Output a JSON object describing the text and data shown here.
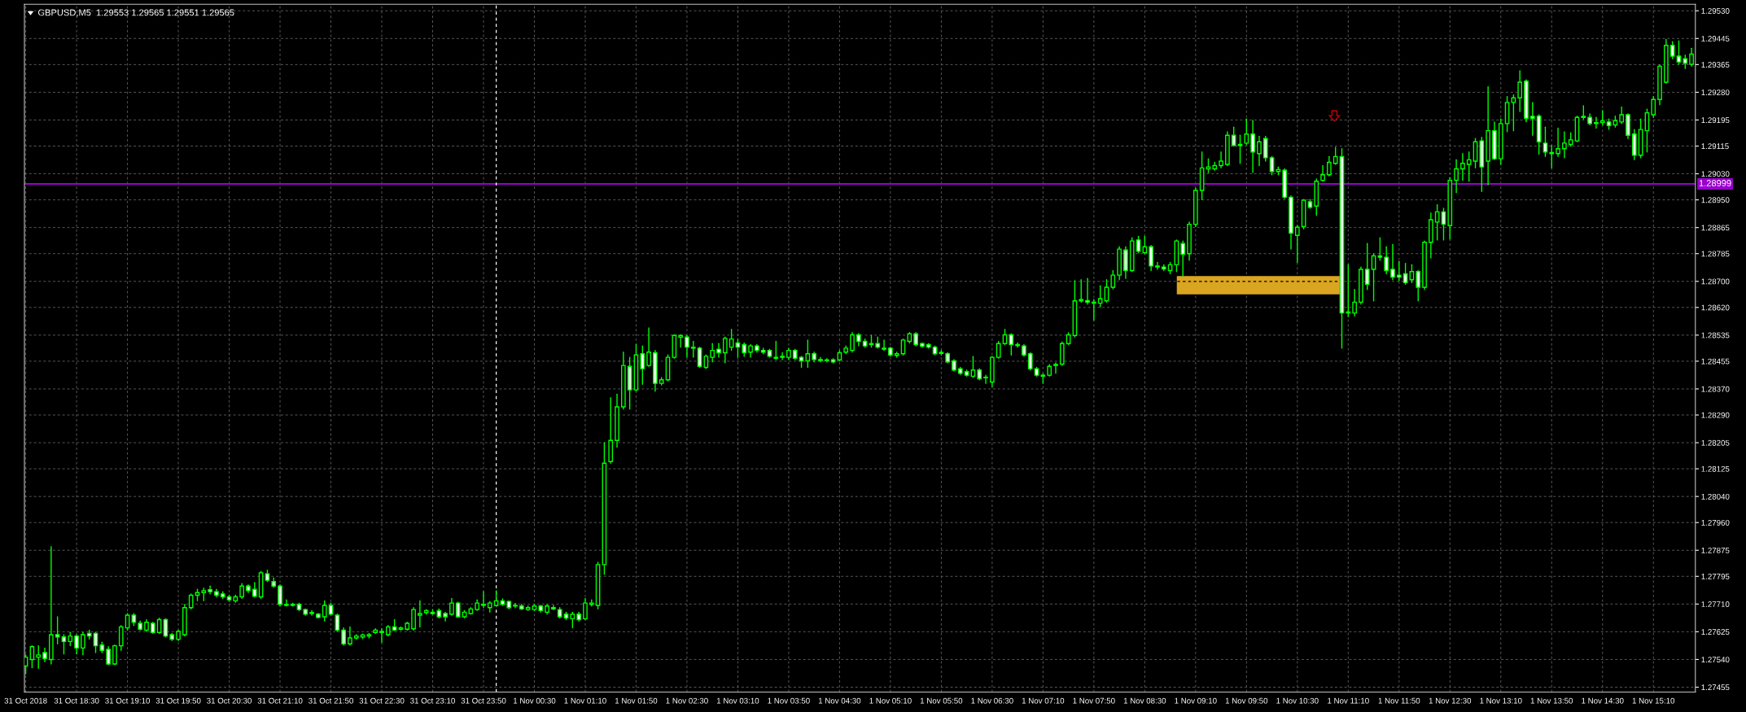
{
  "chart_data": {
    "type": "candlestick",
    "title": "GBPUSD,M5  1.29553 1.29565 1.29551 1.29565",
    "color": "#00ff00",
    "grid": true,
    "x": [
      "2018-10-31T17:50",
      "2018-10-31T17:55",
      "2018-10-31T18:00",
      "2018-10-31T18:05",
      "2018-10-31T18:10",
      "2018-10-31T18:15",
      "2018-10-31T18:20",
      "2018-10-31T18:25",
      "2018-10-31T18:30",
      "2018-10-31T18:35",
      "2018-10-31T18:40",
      "2018-10-31T18:45",
      "2018-10-31T18:50",
      "2018-10-31T18:55",
      "2018-10-31T19:00",
      "2018-10-31T19:05",
      "2018-10-31T19:10",
      "2018-10-31T19:15",
      "2018-10-31T19:20",
      "2018-10-31T19:25",
      "2018-10-31T19:30",
      "2018-10-31T19:35",
      "2018-10-31T19:40",
      "2018-10-31T19:45",
      "2018-10-31T19:50",
      "2018-10-31T19:55",
      "2018-10-31T20:00",
      "2018-10-31T20:05",
      "2018-10-31T20:10",
      "2018-10-31T20:15",
      "2018-10-31T20:20",
      "2018-10-31T20:25",
      "2018-10-31T20:30",
      "2018-10-31T20:35",
      "2018-10-31T20:40",
      "2018-10-31T20:45",
      "2018-10-31T20:50",
      "2018-10-31T20:55",
      "2018-10-31T21:00",
      "2018-10-31T21:05",
      "2018-10-31T21:10",
      "2018-10-31T21:15",
      "2018-10-31T21:20",
      "2018-10-31T21:25",
      "2018-10-31T21:30",
      "2018-10-31T21:35",
      "2018-10-31T21:40",
      "2018-10-31T21:45",
      "2018-10-31T21:50",
      "2018-10-31T21:55",
      "2018-10-31T22:00",
      "2018-10-31T22:05",
      "2018-10-31T22:10",
      "2018-10-31T22:15",
      "2018-10-31T22:20",
      "2018-10-31T22:25",
      "2018-10-31T22:30",
      "2018-10-31T22:35",
      "2018-10-31T22:40",
      "2018-10-31T22:45",
      "2018-10-31T22:50",
      "2018-10-31T22:55",
      "2018-10-31T23:00",
      "2018-10-31T23:05",
      "2018-10-31T23:10",
      "2018-10-31T23:15",
      "2018-10-31T23:20",
      "2018-10-31T23:25",
      "2018-10-31T23:30",
      "2018-10-31T23:35",
      "2018-10-31T23:40",
      "2018-10-31T23:45",
      "2018-10-31T23:50",
      "2018-10-31T23:55",
      "2018-11-01T00:00",
      "2018-11-01T00:05",
      "2018-11-01T00:10",
      "2018-11-01T00:15",
      "2018-11-01T00:20",
      "2018-11-01T00:25",
      "2018-11-01T00:30",
      "2018-11-01T00:35",
      "2018-11-01T00:40",
      "2018-11-01T00:45",
      "2018-11-01T00:50",
      "2018-11-01T00:55",
      "2018-11-01T01:00",
      "2018-11-01T01:05",
      "2018-11-01T01:10",
      "2018-11-01T01:15",
      "2018-11-01T01:20",
      "2018-11-01T01:25",
      "2018-11-01T01:30",
      "2018-11-01T01:35",
      "2018-11-01T01:40",
      "2018-11-01T01:45",
      "2018-11-01T01:50",
      "2018-11-01T01:55",
      "2018-11-01T02:00",
      "2018-11-01T02:05",
      "2018-11-01T02:10",
      "2018-11-01T02:15",
      "2018-11-01T02:20",
      "2018-11-01T02:25",
      "2018-11-01T02:30",
      "2018-11-01T02:35",
      "2018-11-01T02:40",
      "2018-11-01T02:45",
      "2018-11-01T02:50",
      "2018-11-01T02:55",
      "2018-11-01T03:00",
      "2018-11-01T03:05",
      "2018-11-01T03:10",
      "2018-11-01T03:15",
      "2018-11-01T03:20",
      "2018-11-01T03:25",
      "2018-11-01T03:30",
      "2018-11-01T03:35",
      "2018-11-01T03:40",
      "2018-11-01T03:45",
      "2018-11-01T03:50",
      "2018-11-01T03:55",
      "2018-11-01T04:00",
      "2018-11-01T04:05",
      "2018-11-01T04:10",
      "2018-11-01T04:15",
      "2018-11-01T04:20",
      "2018-11-01T04:25",
      "2018-11-01T04:30",
      "2018-11-01T04:35",
      "2018-11-01T04:40",
      "2018-11-01T04:45",
      "2018-11-01T04:50",
      "2018-11-01T04:55",
      "2018-11-01T05:00",
      "2018-11-01T05:05",
      "2018-11-01T05:10",
      "2018-11-01T05:15",
      "2018-11-01T05:20",
      "2018-11-01T05:25",
      "2018-11-01T05:30",
      "2018-11-01T05:35",
      "2018-11-01T05:40",
      "2018-11-01T05:45",
      "2018-11-01T05:50",
      "2018-11-01T05:55",
      "2018-11-01T06:00",
      "2018-11-01T06:05",
      "2018-11-01T06:10",
      "2018-11-01T06:15",
      "2018-11-01T06:20",
      "2018-11-01T06:25",
      "2018-11-01T06:30",
      "2018-11-01T06:35",
      "2018-11-01T06:40",
      "2018-11-01T06:45",
      "2018-11-01T06:50",
      "2018-11-01T06:55",
      "2018-11-01T07:00",
      "2018-11-01T07:05",
      "2018-11-01T07:10",
      "2018-11-01T07:15",
      "2018-11-01T07:20",
      "2018-11-01T07:25",
      "2018-11-01T07:30",
      "2018-11-01T07:35",
      "2018-11-01T07:40",
      "2018-11-01T07:45",
      "2018-11-01T07:50",
      "2018-11-01T07:55",
      "2018-11-01T08:00",
      "2018-11-01T08:05",
      "2018-11-01T08:10",
      "2018-11-01T08:15",
      "2018-11-01T08:20",
      "2018-11-01T08:25",
      "2018-11-01T08:30",
      "2018-11-01T08:35",
      "2018-11-01T08:40",
      "2018-11-01T08:45",
      "2018-11-01T08:50",
      "2018-11-01T08:55",
      "2018-11-01T09:00",
      "2018-11-01T09:05",
      "2018-11-01T09:10",
      "2018-11-01T09:15",
      "2018-11-01T09:20",
      "2018-11-01T09:25",
      "2018-11-01T09:30",
      "2018-11-01T09:35",
      "2018-11-01T09:40",
      "2018-11-01T09:45",
      "2018-11-01T09:50",
      "2018-11-01T09:55",
      "2018-11-01T10:00",
      "2018-11-01T10:05",
      "2018-11-01T10:10",
      "2018-11-01T10:15",
      "2018-11-01T10:20",
      "2018-11-01T10:25",
      "2018-11-01T10:30",
      "2018-11-01T10:35",
      "2018-11-01T10:40",
      "2018-11-01T10:45",
      "2018-11-01T10:50",
      "2018-11-01T10:55",
      "2018-11-01T11:00",
      "2018-11-01T11:05",
      "2018-11-01T11:10",
      "2018-11-01T11:15",
      "2018-11-01T11:20",
      "2018-11-01T11:25",
      "2018-11-01T11:30",
      "2018-11-01T11:35",
      "2018-11-01T11:40",
      "2018-11-01T11:45",
      "2018-11-01T11:50",
      "2018-11-01T11:55",
      "2018-11-01T12:00",
      "2018-11-01T12:05",
      "2018-11-01T12:10",
      "2018-11-01T12:15",
      "2018-11-01T12:20",
      "2018-11-01T12:25",
      "2018-11-01T12:30",
      "2018-11-01T12:35",
      "2018-11-01T12:40",
      "2018-11-01T12:45",
      "2018-11-01T12:50",
      "2018-11-01T12:55",
      "2018-11-01T13:00",
      "2018-11-01T13:05",
      "2018-11-01T13:10",
      "2018-11-01T13:15",
      "2018-11-01T13:20",
      "2018-11-01T13:25",
      "2018-11-01T13:30",
      "2018-11-01T13:35",
      "2018-11-01T13:40",
      "2018-11-01T13:45",
      "2018-11-01T13:50",
      "2018-11-01T13:55",
      "2018-11-01T14:00",
      "2018-11-01T14:05",
      "2018-11-01T14:10",
      "2018-11-01T14:15",
      "2018-11-01T14:20",
      "2018-11-01T14:25",
      "2018-11-01T14:30",
      "2018-11-01T14:35",
      "2018-11-01T14:40",
      "2018-11-01T14:45",
      "2018-11-01T14:50",
      "2018-11-01T14:55",
      "2018-11-01T15:00",
      "2018-11-01T15:05",
      "2018-11-01T15:10",
      "2018-11-01T15:15",
      "2018-11-01T15:20",
      "2018-11-01T15:25",
      "2018-11-01T15:30",
      "2018-11-01T15:35",
      "2018-11-01T15:40"
    ],
    "ohlc": [
      [
        1.2752,
        1.27554,
        1.27496,
        1.27547
      ],
      [
        1.2754,
        1.27582,
        1.27515,
        1.27579
      ],
      [
        1.27547,
        1.27582,
        1.27513,
        1.27554
      ],
      [
        1.27561,
        1.27575,
        1.27533,
        1.27543
      ],
      [
        1.2754,
        1.27886,
        1.27526,
        1.27616
      ],
      [
        1.27616,
        1.27671,
        1.27588,
        1.27609
      ],
      [
        1.27609,
        1.27616,
        1.27557,
        1.27595
      ],
      [
        1.27595,
        1.27623,
        1.27582,
        1.27612
      ],
      [
        1.27612,
        1.27616,
        1.27557,
        1.27575
      ],
      [
        1.27575,
        1.27623,
        1.27554,
        1.27616
      ],
      [
        1.2762,
        1.2763,
        1.27602,
        1.27612
      ],
      [
        1.2762,
        1.27623,
        1.27561,
        1.27582
      ],
      [
        1.27584,
        1.27593,
        1.27561,
        1.27568
      ],
      [
        1.27571,
        1.27579,
        1.27524,
        1.27526
      ],
      [
        1.27526,
        1.27584,
        1.27524,
        1.27582
      ],
      [
        1.27582,
        1.27644,
        1.27568,
        1.2764
      ],
      [
        1.27637,
        1.27681,
        1.2763,
        1.27676
      ],
      [
        1.27676,
        1.27681,
        1.27644,
        1.27654
      ],
      [
        1.27651,
        1.27658,
        1.2763,
        1.27633
      ],
      [
        1.2763,
        1.27662,
        1.27626,
        1.27654
      ],
      [
        1.27651,
        1.27654,
        1.2762,
        1.27623
      ],
      [
        1.27623,
        1.27667,
        1.2762,
        1.27662
      ],
      [
        1.27662,
        1.27665,
        1.27609,
        1.27612
      ],
      [
        1.27616,
        1.2762,
        1.27598,
        1.27602
      ],
      [
        1.27602,
        1.2763,
        1.27598,
        1.27626
      ],
      [
        1.27616,
        1.27709,
        1.27612,
        1.27699
      ],
      [
        1.27699,
        1.27741,
        1.27695,
        1.27737
      ],
      [
        1.27737,
        1.27755,
        1.2772,
        1.27745
      ],
      [
        1.27745,
        1.27759,
        1.2772,
        1.27751
      ],
      [
        1.27754,
        1.27765,
        1.27741,
        1.27748
      ],
      [
        1.27748,
        1.27755,
        1.27732,
        1.27737
      ],
      [
        1.27741,
        1.27748,
        1.27727,
        1.27732
      ],
      [
        1.27732,
        1.27737,
        1.27718,
        1.27723
      ],
      [
        1.2772,
        1.27737,
        1.27716,
        1.27732
      ],
      [
        1.27732,
        1.27773,
        1.27727,
        1.27765
      ],
      [
        1.27765,
        1.27769,
        1.27745,
        1.27751
      ],
      [
        1.27755,
        1.27776,
        1.27732,
        1.27734
      ],
      [
        1.27732,
        1.2781,
        1.27727,
        1.27806
      ],
      [
        1.27803,
        1.27814,
        1.27779,
        1.27783
      ],
      [
        1.27779,
        1.2779,
        1.27762,
        1.27765
      ],
      [
        1.27765,
        1.27769,
        1.27704,
        1.27709
      ],
      [
        1.27709,
        1.27723,
        1.27704,
        1.27706
      ],
      [
        1.27709,
        1.27713,
        1.27704,
        1.27706
      ],
      [
        1.27709,
        1.27713,
        1.2769,
        1.27693
      ],
      [
        1.27693,
        1.27695,
        1.27676,
        1.27679
      ],
      [
        1.27681,
        1.2769,
        1.27676,
        1.27684
      ],
      [
        1.27679,
        1.27681,
        1.27667,
        1.27669
      ],
      [
        1.27671,
        1.2772,
        1.27658,
        1.27706
      ],
      [
        1.27706,
        1.27713,
        1.27676,
        1.27679
      ],
      [
        1.27676,
        1.27679,
        1.27626,
        1.2763
      ],
      [
        1.2763,
        1.27637,
        1.27584,
        1.27588
      ],
      [
        1.27588,
        1.2764,
        1.27584,
        1.27606
      ],
      [
        1.27606,
        1.27616,
        1.27602,
        1.27612
      ],
      [
        1.27609,
        1.27618,
        1.27604,
        1.27615
      ],
      [
        1.27612,
        1.2762,
        1.27606,
        1.27616
      ],
      [
        1.27623,
        1.27634,
        1.2762,
        1.2763
      ],
      [
        1.27623,
        1.27634,
        1.27593,
        1.27626
      ],
      [
        1.27616,
        1.27644,
        1.27612,
        1.2764
      ],
      [
        1.2764,
        1.27662,
        1.27629,
        1.2763
      ],
      [
        1.27633,
        1.2764,
        1.2763,
        1.27637
      ],
      [
        1.27633,
        1.27654,
        1.2763,
        1.27651
      ],
      [
        1.27634,
        1.27699,
        1.2763,
        1.27693
      ],
      [
        1.27676,
        1.2772,
        1.2764,
        1.27681
      ],
      [
        1.27684,
        1.27693,
        1.27679,
        1.2769
      ],
      [
        1.27685,
        1.27693,
        1.27679,
        1.27681
      ],
      [
        1.2769,
        1.27695,
        1.27667,
        1.27671
      ],
      [
        1.27681,
        1.27685,
        1.27658,
        1.27671
      ],
      [
        1.27679,
        1.27727,
        1.27676,
        1.27713
      ],
      [
        1.27713,
        1.27716,
        1.27669,
        1.27671
      ],
      [
        1.27671,
        1.2769,
        1.27667,
        1.27685
      ],
      [
        1.27681,
        1.27699,
        1.27679,
        1.27695
      ],
      [
        1.27693,
        1.27723,
        1.2769,
        1.27713
      ],
      [
        1.27709,
        1.27748,
        1.27699,
        1.27706
      ],
      [
        1.27699,
        1.27718,
        1.27685,
        1.27713
      ],
      [
        1.27706,
        1.27751,
        1.27704,
        1.2772
      ],
      [
        1.2772,
        1.27726,
        1.27706,
        1.27709
      ],
      [
        1.27718,
        1.2772,
        1.27695,
        1.27699
      ],
      [
        1.27706,
        1.27712,
        1.27699,
        1.27704
      ],
      [
        1.27704,
        1.27709,
        1.27693,
        1.27695
      ],
      [
        1.27693,
        1.27704,
        1.2769,
        1.27699
      ],
      [
        1.27693,
        1.27709,
        1.2769,
        1.27704
      ],
      [
        1.27704,
        1.27706,
        1.27685,
        1.2769
      ],
      [
        1.27685,
        1.27709,
        1.27679,
        1.27704
      ],
      [
        1.27699,
        1.27706,
        1.27693,
        1.27695
      ],
      [
        1.27693,
        1.27699,
        1.27667,
        1.27671
      ],
      [
        1.27679,
        1.27685,
        1.27662,
        1.27667
      ],
      [
        1.27665,
        1.27685,
        1.27637,
        1.27679
      ],
      [
        1.27679,
        1.27685,
        1.27658,
        1.27662
      ],
      [
        1.27665,
        1.27727,
        1.27662,
        1.27713
      ],
      [
        1.27709,
        1.27723,
        1.27704,
        1.27713
      ],
      [
        1.27706,
        1.27838,
        1.27695,
        1.27831
      ],
      [
        1.27831,
        1.28205,
        1.27801,
        1.28142
      ],
      [
        1.28147,
        1.28343,
        1.28142,
        1.28212
      ],
      [
        1.28212,
        1.28354,
        1.28191,
        1.28315
      ],
      [
        1.28315,
        1.28483,
        1.28308,
        1.28442
      ],
      [
        1.28439,
        1.28467,
        1.28308,
        1.28367
      ],
      [
        1.28367,
        1.28506,
        1.28363,
        1.28474
      ],
      [
        1.28478,
        1.28502,
        1.28384,
        1.28432
      ],
      [
        1.28442,
        1.28557,
        1.28439,
        1.28483
      ],
      [
        1.28481,
        1.28488,
        1.28363,
        1.28387
      ],
      [
        1.28387,
        1.28405,
        1.28382,
        1.28398
      ],
      [
        1.28398,
        1.28474,
        1.28395,
        1.28467
      ],
      [
        1.28467,
        1.28536,
        1.28464,
        1.28534
      ],
      [
        1.28529,
        1.28536,
        1.28498,
        1.28534
      ],
      [
        1.28529,
        1.28534,
        1.28467,
        1.28498
      ],
      [
        1.28498,
        1.28516,
        1.28467,
        1.28495
      ],
      [
        1.28495,
        1.28498,
        1.28436,
        1.28439
      ],
      [
        1.28436,
        1.28474,
        1.28432,
        1.2847
      ],
      [
        1.28467,
        1.28509,
        1.28453,
        1.28488
      ],
      [
        1.28492,
        1.28509,
        1.28467,
        1.28481
      ],
      [
        1.28481,
        1.28529,
        1.2845,
        1.28525
      ],
      [
        1.28498,
        1.28553,
        1.28488,
        1.28523
      ],
      [
        1.28511,
        1.28523,
        1.28467,
        1.28498
      ],
      [
        1.28506,
        1.28511,
        1.2847,
        1.28481
      ],
      [
        1.28483,
        1.28506,
        1.28467,
        1.28502
      ],
      [
        1.28502,
        1.28506,
        1.28483,
        1.28488
      ],
      [
        1.28488,
        1.28495,
        1.28478,
        1.28483
      ],
      [
        1.28488,
        1.28492,
        1.28467,
        1.2847
      ],
      [
        1.28467,
        1.28516,
        1.2846,
        1.28464
      ],
      [
        1.28467,
        1.28481,
        1.2846,
        1.2847
      ],
      [
        1.28467,
        1.28495,
        1.2846,
        1.28488
      ],
      [
        1.28488,
        1.28492,
        1.2846,
        1.28464
      ],
      [
        1.28467,
        1.2847,
        1.28436,
        1.28456
      ],
      [
        1.28456,
        1.2852,
        1.28436,
        1.28478
      ],
      [
        1.28478,
        1.28483,
        1.28453,
        1.2846
      ],
      [
        1.2846,
        1.28467,
        1.28453,
        1.28457
      ],
      [
        1.28459,
        1.28463,
        1.28453,
        1.28457
      ],
      [
        1.28459,
        1.28463,
        1.2845,
        1.28453
      ],
      [
        1.28459,
        1.28488,
        1.28456,
        1.28481
      ],
      [
        1.28483,
        1.28502,
        1.28478,
        1.28495
      ],
      [
        1.28488,
        1.28543,
        1.28483,
        1.28536
      ],
      [
        1.28536,
        1.2854,
        1.28502,
        1.28516
      ],
      [
        1.28516,
        1.28523,
        1.28498,
        1.28502
      ],
      [
        1.28509,
        1.28534,
        1.28498,
        1.28506
      ],
      [
        1.28509,
        1.28529,
        1.28495,
        1.28498
      ],
      [
        1.28495,
        1.2852,
        1.28488,
        1.28492
      ],
      [
        1.28495,
        1.28498,
        1.2847,
        1.28474
      ],
      [
        1.28473,
        1.28483,
        1.28467,
        1.28478
      ],
      [
        1.28478,
        1.28523,
        1.28474,
        1.2852
      ],
      [
        1.28516,
        1.28543,
        1.28511,
        1.28539
      ],
      [
        1.28539,
        1.28543,
        1.28502,
        1.28506
      ],
      [
        1.28509,
        1.28511,
        1.28498,
        1.28501
      ],
      [
        1.28506,
        1.28509,
        1.28495,
        1.28498
      ],
      [
        1.28498,
        1.28502,
        1.28475,
        1.28478
      ],
      [
        1.28482,
        1.28488,
        1.28474,
        1.28479
      ],
      [
        1.28478,
        1.28481,
        1.2845,
        1.28453
      ],
      [
        1.28456,
        1.2846,
        1.28425,
        1.28428
      ],
      [
        1.28432,
        1.28436,
        1.28414,
        1.28418
      ],
      [
        1.28423,
        1.28428,
        1.28409,
        1.28412
      ],
      [
        1.28409,
        1.2847,
        1.28405,
        1.28428
      ],
      [
        1.28428,
        1.28432,
        1.28398,
        1.28401
      ],
      [
        1.28406,
        1.28412,
        1.28387,
        1.28404
      ],
      [
        1.28391,
        1.2847,
        1.28377,
        1.28467
      ],
      [
        1.28467,
        1.28516,
        1.28464,
        1.28509
      ],
      [
        1.28509,
        1.28553,
        1.28506,
        1.28536
      ],
      [
        1.28536,
        1.28539,
        1.28474,
        1.28506
      ],
      [
        1.28506,
        1.28511,
        1.28498,
        1.28503
      ],
      [
        1.28502,
        1.28506,
        1.2847,
        1.28474
      ],
      [
        1.28478,
        1.28481,
        1.28428,
        1.28432
      ],
      [
        1.28432,
        1.28436,
        1.28409,
        1.28412
      ],
      [
        1.28412,
        1.28417,
        1.28387,
        1.28409
      ],
      [
        1.28412,
        1.28445,
        1.28409,
        1.28439
      ],
      [
        1.28442,
        1.2845,
        1.28418,
        1.28445
      ],
      [
        1.28446,
        1.28514,
        1.28442,
        1.28509
      ],
      [
        1.28509,
        1.28542,
        1.28506,
        1.28536
      ],
      [
        1.28534,
        1.28702,
        1.28529,
        1.2864
      ],
      [
        1.2864,
        1.28705,
        1.28636,
        1.28644
      ],
      [
        1.28641,
        1.28709,
        1.2863,
        1.28636
      ],
      [
        1.28636,
        1.28644,
        1.28581,
        1.28633
      ],
      [
        1.28633,
        1.28686,
        1.28622,
        1.28647
      ],
      [
        1.2864,
        1.28705,
        1.28636,
        1.28682
      ],
      [
        1.28682,
        1.28733,
        1.28677,
        1.28719
      ],
      [
        1.28719,
        1.28806,
        1.28705,
        1.28799
      ],
      [
        1.28796,
        1.28806,
        1.28709,
        1.28733
      ],
      [
        1.28733,
        1.28834,
        1.2873,
        1.28824
      ],
      [
        1.28827,
        1.28838,
        1.28788,
        1.28792
      ],
      [
        1.28788,
        1.28838,
        1.28785,
        1.28806
      ],
      [
        1.28806,
        1.2881,
        1.28733,
        1.28747
      ],
      [
        1.28747,
        1.28758,
        1.28737,
        1.28744
      ],
      [
        1.28744,
        1.28751,
        1.28733,
        1.28738
      ],
      [
        1.28733,
        1.28758,
        1.28723,
        1.28751
      ],
      [
        1.28751,
        1.28827,
        1.2873,
        1.28824
      ],
      [
        1.28816,
        1.28824,
        1.28716,
        1.28783
      ],
      [
        1.28785,
        1.28882,
        1.28765,
        1.28875
      ],
      [
        1.28875,
        1.28986,
        1.28868,
        1.28979
      ],
      [
        1.28979,
        1.29097,
        1.28951,
        1.29048
      ],
      [
        1.29045,
        1.29076,
        1.29034,
        1.29051
      ],
      [
        1.29045,
        1.29065,
        1.29041,
        1.29055
      ],
      [
        1.29055,
        1.29097,
        1.29048,
        1.29069
      ],
      [
        1.29059,
        1.29159,
        1.29055,
        1.29148
      ],
      [
        1.29148,
        1.29173,
        1.29115,
        1.29117
      ],
      [
        1.29117,
        1.29148,
        1.29062,
        1.2912
      ],
      [
        1.29124,
        1.29198,
        1.2912,
        1.29152
      ],
      [
        1.29152,
        1.29193,
        1.29034,
        1.29097
      ],
      [
        1.29092,
        1.29145,
        1.29055,
        1.29128
      ],
      [
        1.29138,
        1.29145,
        1.29069,
        1.29079
      ],
      [
        1.29079,
        1.29083,
        1.29027,
        1.29037
      ],
      [
        1.29037,
        1.29051,
        1.29027,
        1.29043
      ],
      [
        1.29041,
        1.29045,
        1.28954,
        1.28958
      ],
      [
        1.28958,
        1.28962,
        1.28799,
        1.28848
      ],
      [
        1.28841,
        1.28871,
        1.28758,
        1.28866
      ],
      [
        1.28868,
        1.28951,
        1.28861,
        1.28949
      ],
      [
        1.28944,
        1.28951,
        1.28924,
        1.28927
      ],
      [
        1.28931,
        1.29014,
        1.28903,
        1.29007
      ],
      [
        1.2901,
        1.29055,
        1.29007,
        1.29027
      ],
      [
        1.29027,
        1.29083,
        1.29023,
        1.29065
      ],
      [
        1.29062,
        1.29111,
        1.29059,
        1.29083
      ],
      [
        1.29083,
        1.29107,
        1.28495,
        1.28603
      ],
      [
        1.28603,
        1.28751,
        1.28592,
        1.28606
      ],
      [
        1.28603,
        1.28675,
        1.28594,
        1.28636
      ],
      [
        1.28636,
        1.28744,
        1.2863,
        1.28737
      ],
      [
        1.28737,
        1.28816,
        1.28675,
        1.28691
      ],
      [
        1.28737,
        1.28785,
        1.2864,
        1.28778
      ],
      [
        1.28778,
        1.28834,
        1.28765,
        1.28774
      ],
      [
        1.28774,
        1.28806,
        1.28723,
        1.28733
      ],
      [
        1.28737,
        1.28813,
        1.28705,
        1.28713
      ],
      [
        1.28719,
        1.28761,
        1.28702,
        1.28713
      ],
      [
        1.28723,
        1.28755,
        1.28691,
        1.28696
      ],
      [
        1.28705,
        1.28751,
        1.28696,
        1.2873
      ],
      [
        1.2873,
        1.28733,
        1.2864,
        1.28682
      ],
      [
        1.28682,
        1.28824,
        1.28675,
        1.2882
      ],
      [
        1.2882,
        1.2891,
        1.28772,
        1.28889
      ],
      [
        1.28882,
        1.28935,
        1.28827,
        1.28913
      ],
      [
        1.28913,
        1.28924,
        1.28827,
        1.28875
      ],
      [
        1.28871,
        1.29018,
        1.2883,
        1.2901
      ],
      [
        1.2901,
        1.29073,
        1.28972,
        1.29045
      ],
      [
        1.29045,
        1.29092,
        1.2901,
        1.29062
      ],
      [
        1.29059,
        1.29097,
        1.29007,
        1.29073
      ],
      [
        1.29069,
        1.29138,
        1.29048,
        1.29128
      ],
      [
        1.29131,
        1.29142,
        1.28976,
        1.29051
      ],
      [
        1.29069,
        1.29297,
        1.28996,
        1.29162
      ],
      [
        1.29162,
        1.29189,
        1.29073,
        1.29076
      ],
      [
        1.29076,
        1.29198,
        1.29059,
        1.29184
      ],
      [
        1.29184,
        1.29267,
        1.29159,
        1.29249
      ],
      [
        1.29249,
        1.29272,
        1.29162,
        1.29263
      ],
      [
        1.29263,
        1.29346,
        1.29221,
        1.29311
      ],
      [
        1.29314,
        1.29318,
        1.29189,
        1.292
      ],
      [
        1.29206,
        1.29249,
        1.29148,
        1.292
      ],
      [
        1.29207,
        1.29211,
        1.2909,
        1.29128
      ],
      [
        1.29124,
        1.29173,
        1.29083,
        1.29097
      ],
      [
        1.29095,
        1.29117,
        1.29048,
        1.29092
      ],
      [
        1.29092,
        1.2917,
        1.29083,
        1.29107
      ],
      [
        1.29107,
        1.29159,
        1.29079,
        1.29124
      ],
      [
        1.2912,
        1.29156,
        1.29115,
        1.29134
      ],
      [
        1.29131,
        1.29207,
        1.29128,
        1.29203
      ],
      [
        1.29206,
        1.29239,
        1.29198,
        1.29203
      ],
      [
        1.29203,
        1.29214,
        1.2918,
        1.29184
      ],
      [
        1.29187,
        1.29203,
        1.2917,
        1.29184
      ],
      [
        1.29187,
        1.29224,
        1.2918,
        1.29192
      ],
      [
        1.29189,
        1.29198,
        1.29166,
        1.29178
      ],
      [
        1.2918,
        1.29207,
        1.29173,
        1.29193
      ],
      [
        1.29189,
        1.29235,
        1.29184,
        1.29211
      ],
      [
        1.29211,
        1.29214,
        1.29138,
        1.29148
      ],
      [
        1.29152,
        1.29166,
        1.29073,
        1.29087
      ],
      [
        1.29087,
        1.29198,
        1.29079,
        1.29166
      ],
      [
        1.29162,
        1.29228,
        1.29097,
        1.29217
      ],
      [
        1.29211,
        1.29267,
        1.29203,
        1.29258
      ],
      [
        1.29258,
        1.29364,
        1.29242,
        1.2936
      ],
      [
        1.29311,
        1.29442,
        1.29308,
        1.29424
      ],
      [
        1.29424,
        1.29435,
        1.29383,
        1.29391
      ],
      [
        1.29391,
        1.29438,
        1.29366,
        1.29373
      ],
      [
        1.29383,
        1.29394,
        1.29353,
        1.29369
      ],
      [
        1.29366,
        1.29415,
        1.2936,
        1.29397
      ]
    ],
    "xlim": [
      "2018-10-31T17:49",
      "2018-11-01T15:43"
    ],
    "xticks": [
      {
        "value": "2018-10-31T17:50",
        "label": "31 Oct 2018"
      },
      {
        "value": "2018-10-31T18:30",
        "label": "31 Oct 18:30"
      },
      {
        "value": "2018-10-31T19:10",
        "label": "31 Oct 19:10"
      },
      {
        "value": "2018-10-31T19:50",
        "label": "31 Oct 19:50"
      },
      {
        "value": "2018-10-31T20:30",
        "label": "31 Oct 20:30"
      },
      {
        "value": "2018-10-31T21:10",
        "label": "31 Oct 21:10"
      },
      {
        "value": "2018-10-31T21:50",
        "label": "31 Oct 21:50"
      },
      {
        "value": "2018-10-31T22:30",
        "label": "31 Oct 22:30"
      },
      {
        "value": "2018-10-31T23:10",
        "label": "31 Oct 23:10"
      },
      {
        "value": "2018-10-31T23:50",
        "label": "31 Oct 23:50"
      },
      {
        "value": "2018-11-01T00:30",
        "label": "1 Nov 00:30"
      },
      {
        "value": "2018-11-01T01:10",
        "label": "1 Nov 01:10"
      },
      {
        "value": "2018-11-01T01:50",
        "label": "1 Nov 01:50"
      },
      {
        "value": "2018-11-01T02:30",
        "label": "1 Nov 02:30"
      },
      {
        "value": "2018-11-01T03:10",
        "label": "1 Nov 03:10"
      },
      {
        "value": "2018-11-01T03:50",
        "label": "1 Nov 03:50"
      },
      {
        "value": "2018-11-01T04:30",
        "label": "1 Nov 04:30"
      },
      {
        "value": "2018-11-01T05:10",
        "label": "1 Nov 05:10"
      },
      {
        "value": "2018-11-01T05:50",
        "label": "1 Nov 05:50"
      },
      {
        "value": "2018-11-01T06:30",
        "label": "1 Nov 06:30"
      },
      {
        "value": "2018-11-01T07:10",
        "label": "1 Nov 07:10"
      },
      {
        "value": "2018-11-01T07:50",
        "label": "1 Nov 07:50"
      },
      {
        "value": "2018-11-01T08:30",
        "label": "1 Nov 08:30"
      },
      {
        "value": "2018-11-01T09:10",
        "label": "1 Nov 09:10"
      },
      {
        "value": "2018-11-01T09:50",
        "label": "1 Nov 09:50"
      },
      {
        "value": "2018-11-01T10:30",
        "label": "1 Nov 10:30"
      },
      {
        "value": "2018-11-01T11:10",
        "label": "1 Nov 11:10"
      },
      {
        "value": "2018-11-01T11:50",
        "label": "1 Nov 11:50"
      },
      {
        "value": "2018-11-01T12:30",
        "label": "1 Nov 12:30"
      },
      {
        "value": "2018-11-01T13:10",
        "label": "1 Nov 13:10"
      },
      {
        "value": "2018-11-01T13:50",
        "label": "1 Nov 13:50"
      },
      {
        "value": "2018-11-01T14:30",
        "label": "1 Nov 14:30"
      },
      {
        "value": "2018-11-01T15:10",
        "label": "1 Nov 15:10"
      }
    ],
    "ylim": [
      1.2744,
      1.2955
    ],
    "yticks": [
      {
        "value": 1.27455,
        "label": "1.27455"
      },
      {
        "value": 1.2754,
        "label": "1.27540"
      },
      {
        "value": 1.27625,
        "label": "1.27625"
      },
      {
        "value": 1.2771,
        "label": "1.27710"
      },
      {
        "value": 1.27795,
        "label": "1.27795"
      },
      {
        "value": 1.27875,
        "label": "1.27875"
      },
      {
        "value": 1.2796,
        "label": "1.27960"
      },
      {
        "value": 1.2804,
        "label": "1.28040"
      },
      {
        "value": 1.28125,
        "label": "1.28125"
      },
      {
        "value": 1.28205,
        "label": "1.28205"
      },
      {
        "value": 1.2829,
        "label": "1.28290"
      },
      {
        "value": 1.2837,
        "label": "1.28370"
      },
      {
        "value": 1.28455,
        "label": "1.28455"
      },
      {
        "value": 1.28535,
        "label": "1.28535"
      },
      {
        "value": 1.2862,
        "label": "1.28620"
      },
      {
        "value": 1.287,
        "label": "1.28700"
      },
      {
        "value": 1.28785,
        "label": "1.28785"
      },
      {
        "value": 1.28865,
        "label": "1.28865"
      },
      {
        "value": 1.2895,
        "label": "1.28950"
      },
      {
        "value": 1.2903,
        "label": "1.29030"
      },
      {
        "value": 1.29115,
        "label": "1.29115"
      },
      {
        "value": 1.29195,
        "label": "1.29195"
      },
      {
        "value": 1.2928,
        "label": "1.29280"
      },
      {
        "value": 1.29365,
        "label": "1.29365"
      },
      {
        "value": 1.29445,
        "label": "1.29445"
      },
      {
        "value": 1.2953,
        "label": "1.29530"
      }
    ],
    "ref_lines": [
      {
        "axis": "y",
        "value": 1.28999,
        "label": "1.28999",
        "color": "#9900cc",
        "line_style": "solid"
      },
      {
        "axis": "x",
        "value": "2018-11-01T00:00",
        "color": "#ffffff",
        "line_style": "dashed"
      }
    ]
  }
}
